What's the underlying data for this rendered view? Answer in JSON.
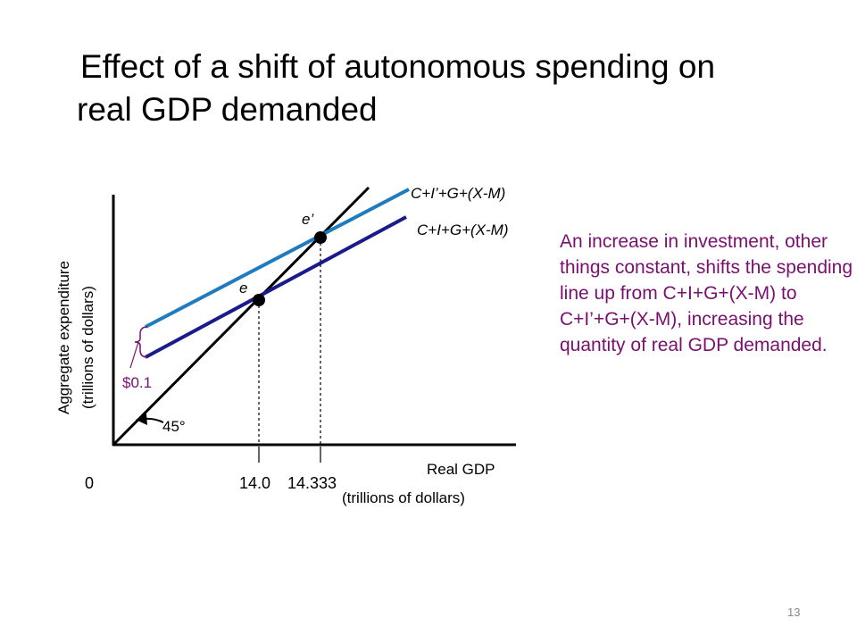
{
  "title": {
    "line1": "Effect of a shift of autonomous spending on",
    "line2": "real GDP demanded"
  },
  "diagram": {
    "y_axis_label": {
      "line1": "Aggregate expenditure",
      "line2": "(trillions of dollars)"
    },
    "x_axis_label": {
      "line1": "Real GDP",
      "line2": "(trillions of dollars)"
    },
    "origin_label": "0",
    "x_ticks": {
      "first": "14.0",
      "second": "14.333"
    },
    "angle_label": "45°",
    "shift_label": "$0.1",
    "point_labels": {
      "initial": "e",
      "new": "e’"
    },
    "lines": {
      "new_spending": "C+I’+G+(X-M)",
      "original_spending": "C+I+G+(X-M)"
    },
    "colors": {
      "axes": "#000000",
      "new_spending_line": "#1f7bbf",
      "original_spending_line": "#1a1a8c",
      "annotation": "#7a0f6e"
    }
  },
  "explanation": "An increase in investment, other things constant, shifts the spending line up from C+I+G+(X-M) to C+I’+G+(X-M), increasing the quantity of real GDP demanded.",
  "slide_number": "13"
}
